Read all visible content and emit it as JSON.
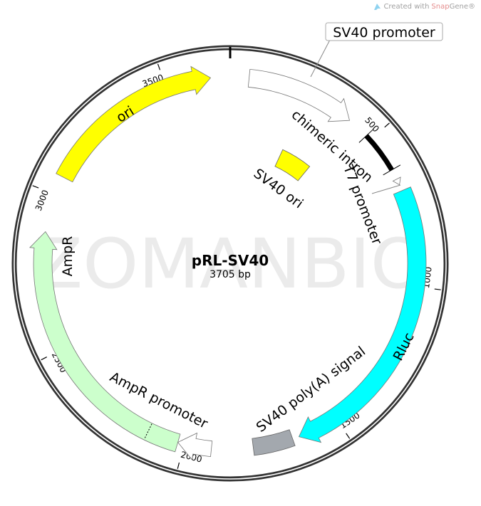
{
  "credit": {
    "prefix": "Created with ",
    "brand_a": "Snap",
    "brand_b": "Gene®",
    "icon": "snapgene-logo-icon"
  },
  "plasmid": {
    "name": "pRL-SV40",
    "length_label": "3705 bp",
    "length_bp": 3705
  },
  "watermark": "ZOMANBIO",
  "ticks": [
    {
      "bp": 500,
      "label": "500"
    },
    {
      "bp": 1000,
      "label": "1000"
    },
    {
      "bp": 1500,
      "label": "1500"
    },
    {
      "bp": 2000,
      "label": "2000"
    },
    {
      "bp": 2500,
      "label": "2500"
    },
    {
      "bp": 3000,
      "label": "3000"
    },
    {
      "bp": 3500,
      "label": "3500"
    }
  ],
  "features": {
    "sv40_promoter": {
      "label": "SV40 promoter",
      "start": 60,
      "end": 410,
      "type": "arrow",
      "color": "#FFFFFF"
    },
    "chimeric_intron": {
      "label": "chimeric intron",
      "start": 482,
      "end": 617,
      "type": "bar",
      "color": "#000000"
    },
    "t7_promoter": {
      "label": "T7 promoter",
      "start": 650,
      "end": 670,
      "type": "arrow",
      "color": "#FFFFFF"
    },
    "rluc": {
      "label": "Rluc",
      "start": 690,
      "end": 1630,
      "type": "arrow",
      "color": "#00FFFF"
    },
    "sv40_polya": {
      "label": "SV40 poly(A) signal",
      "start": 1651,
      "end": 1779,
      "type": "box",
      "color": "#A3A8AE"
    },
    "ampr_promoter": {
      "label": "AmpR promoter",
      "start": 1912,
      "end": 2020,
      "type": "arrow",
      "color": "#FFFFFF"
    },
    "ampr": {
      "label": "AmpR",
      "start": 2020,
      "end": 2879,
      "type": "arrow",
      "color": "#CCFFCC",
      "divider_bp": 2120
    },
    "ori": {
      "label": "ori",
      "start": 3060,
      "end": 3643,
      "type": "arrow",
      "color": "#FFFF00"
    },
    "sv40_ori": {
      "label": "SV40 ori",
      "start": 255,
      "end": 405,
      "type": "box",
      "color": "#FFFF00"
    }
  }
}
